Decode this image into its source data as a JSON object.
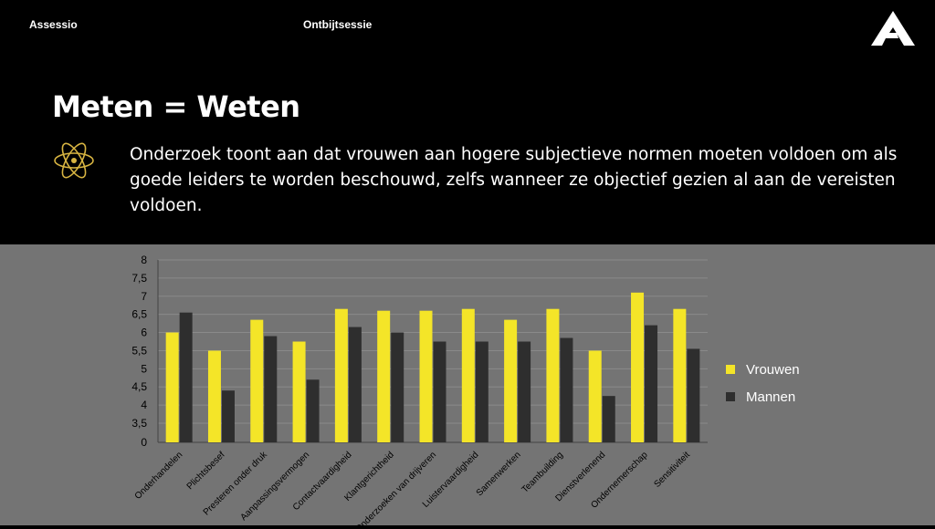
{
  "header": {
    "brand": "Assessio",
    "session": "Ontbijtsessie"
  },
  "slide": {
    "title": "Meten = Weten",
    "body": "Onderzoek toont aan dat vrouwen aan hogere subjectieve normen moeten voldoen om als goede leiders te worden beschouwd, zelfs wanneer ze objectief gezien al aan de vereisten voldoen."
  },
  "icons": {
    "logo": "assessio-logo-icon",
    "bullet": "atom-icon"
  },
  "colors": {
    "vrouwen": "#f4e528",
    "mannen": "#2e2e2e",
    "chart_bg": "#747474"
  },
  "chart_data": {
    "type": "bar",
    "categories": [
      "Onderhandelen",
      "Plichtsbesef",
      "Presteren onder druk",
      "Aanpassingsvermogen",
      "Contactvaardigheid",
      "Klantgerichtheid",
      "Onderzoeken van drijveren",
      "Luistervaardigheid",
      "Samenwerken",
      "Teambuilding",
      "Dienstverlenend",
      "Ondernemerschap",
      "Sensitiviteit"
    ],
    "series": [
      {
        "name": "Vrouwen",
        "values": [
          6.0,
          5.5,
          6.35,
          5.75,
          6.65,
          6.6,
          6.6,
          6.65,
          6.35,
          6.65,
          5.5,
          7.1,
          6.65
        ]
      },
      {
        "name": "Mannen",
        "values": [
          6.55,
          4.4,
          5.9,
          4.7,
          6.15,
          6.0,
          5.75,
          5.75,
          5.75,
          5.85,
          4.25,
          6.2,
          5.55
        ]
      }
    ],
    "yticks": [
      "8",
      "7,5",
      "7",
      "6,5",
      "6",
      "5,5",
      "5",
      "4,5",
      "4",
      "3,5",
      "0"
    ],
    "ytick_values": [
      8,
      7.5,
      7,
      6.5,
      6,
      5.5,
      5,
      4.5,
      4,
      3.5,
      0
    ],
    "axis_break": "y-axis broken between 0 and 3.5",
    "grid": true,
    "legend_position": "right",
    "title": "",
    "xlabel": "",
    "ylabel": ""
  }
}
